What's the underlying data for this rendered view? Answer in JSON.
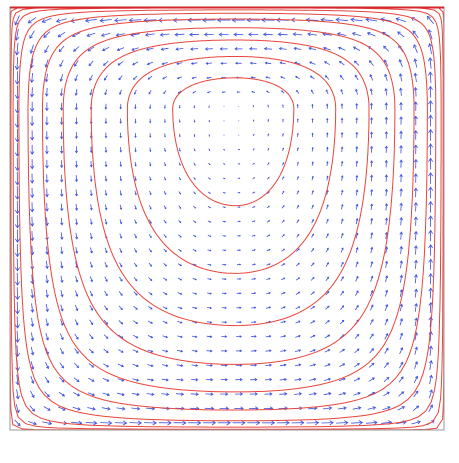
{
  "chart_data": {
    "type": "line",
    "title": "",
    "xlabel": "",
    "ylabel": "",
    "xlim": [
      0,
      1
    ],
    "ylim": [
      0,
      1
    ],
    "grid": false,
    "legend": "none",
    "vortex_center": [
      0.52,
      0.76
    ],
    "series": [
      {
        "kind": "streamline",
        "color": "#e8453c",
        "levels": [
          0.04,
          0.1,
          0.18,
          0.3,
          0.42,
          0.55,
          0.68,
          0.8,
          0.9,
          0.97
        ]
      },
      {
        "kind": "velocity-vector",
        "color": "#3c4fe0",
        "grid_spacing": [
          0.034,
          0.034
        ],
        "lid_velocity": 1.0
      }
    ],
    "colors": {
      "frame": "#9a9a9a",
      "streamline": "#e8453c",
      "vector": "#3c4fe0",
      "lid": "#d4262a"
    }
  }
}
